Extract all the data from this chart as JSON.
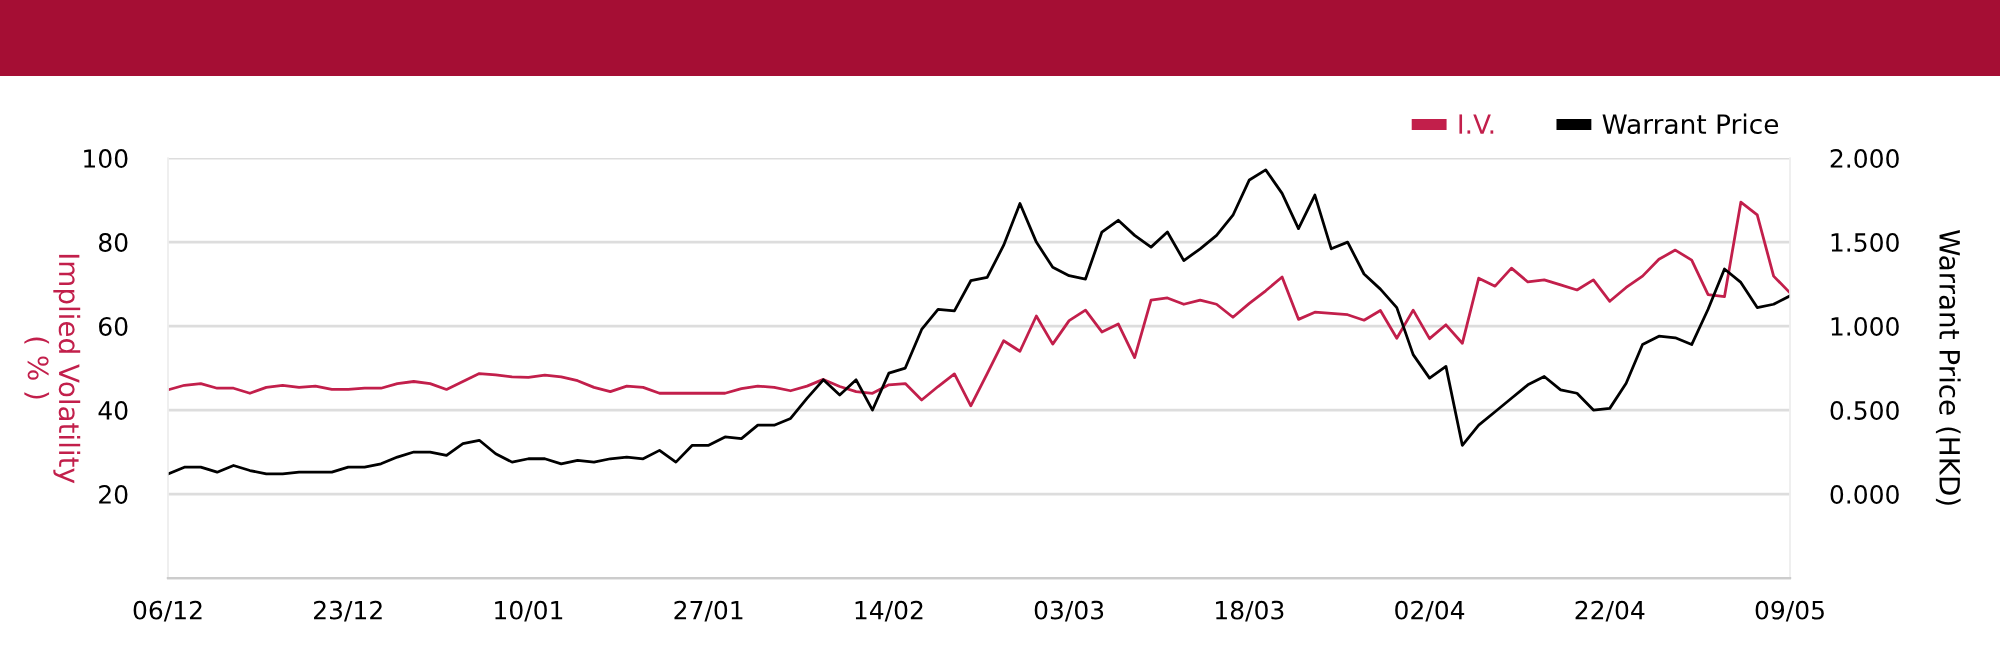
{
  "chart_data": {
    "type": "line",
    "categories": [
      "06/12",
      null,
      null,
      null,
      null,
      null,
      null,
      null,
      null,
      null,
      null,
      "23/12",
      null,
      null,
      null,
      null,
      null,
      null,
      null,
      null,
      null,
      null,
      "10/01",
      null,
      null,
      null,
      null,
      null,
      null,
      null,
      null,
      null,
      null,
      "27/01",
      null,
      null,
      null,
      null,
      null,
      null,
      null,
      null,
      null,
      null,
      "14/02",
      null,
      null,
      null,
      null,
      null,
      null,
      null,
      null,
      null,
      null,
      "03/03",
      null,
      null,
      null,
      null,
      null,
      null,
      null,
      null,
      null,
      null,
      "18/03",
      null,
      null,
      null,
      null,
      null,
      null,
      null,
      null,
      null,
      null,
      "02/04",
      null,
      null,
      null,
      null,
      null,
      null,
      null,
      null,
      null,
      null,
      "22/04",
      null,
      null,
      null,
      null,
      null,
      null,
      null,
      null,
      null,
      null,
      "09/05"
    ],
    "series": [
      {
        "name": "I.V.",
        "color": "#c21f4b",
        "values": [
          44.8,
          45.9,
          46.3,
          45.2,
          45.2,
          44.0,
          45.4,
          45.9,
          45.4,
          45.7,
          44.9,
          44.9,
          45.2,
          45.2,
          46.3,
          46.8,
          46.3,
          44.9,
          46.8,
          48.7,
          48.4,
          47.9,
          47.8,
          48.3,
          47.9,
          47.0,
          45.4,
          44.4,
          45.7,
          45.4,
          44.0,
          44.0,
          44.0,
          44.0,
          44.0,
          45.1,
          45.7,
          45.4,
          44.6,
          45.7,
          47.3,
          45.6,
          44.4,
          44.0,
          46.0,
          46.3,
          42.4,
          45.6,
          48.6,
          41.0,
          48.7,
          56.5,
          54.0,
          62.4,
          55.7,
          61.3,
          63.8,
          58.6,
          60.5,
          52.5,
          66.2,
          66.7,
          65.2,
          66.2,
          65.2,
          62.1,
          65.4,
          68.4,
          71.7,
          61.6,
          63.3,
          63.0,
          62.7,
          61.4,
          63.7,
          57.1,
          63.8,
          57.0,
          60.3,
          55.9,
          71.4,
          69.5,
          73.8,
          70.5,
          71.0,
          69.8,
          68.6,
          71.0,
          65.9,
          69.2,
          71.9,
          75.9,
          78.1,
          75.7,
          67.5,
          67.0,
          89.5,
          86.5,
          71.9,
          67.9
        ]
      },
      {
        "name": "Warrant Price",
        "color": "#000000",
        "axis": "y2",
        "values": [
          0.12,
          0.16,
          0.16,
          0.13,
          0.17,
          0.14,
          0.12,
          0.12,
          0.13,
          0.13,
          0.13,
          0.16,
          0.16,
          0.18,
          0.22,
          0.25,
          0.25,
          0.23,
          0.3,
          0.32,
          0.24,
          0.19,
          0.21,
          0.21,
          0.18,
          0.2,
          0.19,
          0.21,
          0.22,
          0.21,
          0.26,
          0.19,
          0.29,
          0.29,
          0.34,
          0.33,
          0.41,
          0.41,
          0.45,
          0.57,
          0.68,
          0.59,
          0.68,
          0.5,
          0.72,
          0.75,
          0.98,
          1.1,
          1.09,
          1.27,
          1.29,
          1.48,
          1.73,
          1.5,
          1.35,
          1.3,
          1.28,
          1.56,
          1.63,
          1.54,
          1.47,
          1.56,
          1.39,
          1.46,
          1.54,
          1.66,
          1.87,
          1.93,
          1.79,
          1.58,
          1.78,
          1.46,
          1.5,
          1.31,
          1.22,
          1.11,
          0.83,
          0.69,
          0.76,
          0.29,
          0.41,
          0.49,
          0.57,
          0.65,
          0.7,
          0.62,
          0.6,
          0.5,
          0.51,
          0.66,
          0.89,
          0.94,
          0.93,
          0.89,
          1.1,
          1.34,
          1.26,
          1.11,
          1.13,
          1.18
        ]
      }
    ],
    "ylabel": "Implied Volatility\n( % )",
    "y2label": "Warrant Price (HKD)",
    "ylim": [
      0,
      100
    ],
    "yticks": [
      20,
      40,
      60,
      80,
      100
    ],
    "y2lim": [
      -0.5,
      2.0
    ],
    "y2ticks": [
      {
        "value": 0,
        "label": "0.000"
      },
      {
        "value": 0.5,
        "label": "0.500"
      },
      {
        "value": 1.0,
        "label": "1.000"
      },
      {
        "value": 1.5,
        "label": "1.500"
      },
      {
        "value": 2.0,
        "label": "2.000"
      }
    ],
    "grid": "y",
    "legend": "top right"
  }
}
